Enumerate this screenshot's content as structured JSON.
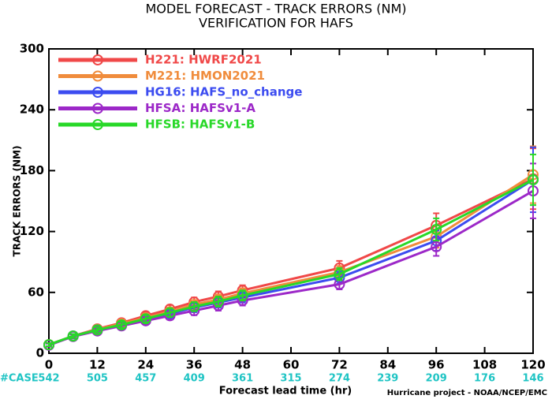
{
  "chart_data": {
    "type": "line",
    "title": "MODEL FORECAST - TRACK ERRORS (NM)",
    "subtitle": "VERIFICATION FOR HAFS",
    "x_label": "Forecast lead time (hr)",
    "y_label": "TRACK ERRORS (NM)",
    "footer": "Hurricane project - NOAA/NCEP/EMC",
    "case_label": "#CASE",
    "case_x": [
      0,
      12,
      24,
      36,
      48,
      60,
      72,
      84,
      96,
      108,
      120
    ],
    "case_counts": [
      542,
      505,
      457,
      409,
      361,
      315,
      274,
      239,
      209,
      176,
      146
    ],
    "x": [
      0,
      6,
      12,
      18,
      24,
      30,
      36,
      42,
      48,
      72,
      96,
      120
    ],
    "series": [
      {
        "name": "H221: HWRF2021",
        "color": "#f04848",
        "values": [
          8.5,
          17,
          24,
          30,
          37,
          43.5,
          50.5,
          56,
          62,
          84,
          126,
          172
        ],
        "errors": [
          1.5,
          2,
          2.5,
          3,
          3.5,
          4,
          4.5,
          5,
          5,
          7,
          12,
          30
        ]
      },
      {
        "name": "M221: HMON2021",
        "color": "#f08c3c",
        "values": [
          8,
          17,
          23.5,
          29,
          35,
          41,
          48,
          53,
          59,
          80,
          115,
          176
        ],
        "errors": [
          1.5,
          2,
          2.5,
          3,
          3.5,
          4,
          4.5,
          5,
          5,
          6,
          11,
          28
        ]
      },
      {
        "name": "HG16: HAFS_no_change",
        "color": "#3c4cf0",
        "values": [
          8,
          17,
          23,
          27.5,
          33,
          39,
          45,
          50,
          55,
          74.5,
          111,
          171
        ],
        "errors": [
          1.5,
          2,
          2.5,
          3,
          3.5,
          4,
          4.5,
          5,
          5,
          6,
          10,
          32
        ]
      },
      {
        "name": "HFSA: HAFSv1-A",
        "color": "#9c28c8",
        "values": [
          8,
          16.5,
          22,
          27,
          32,
          37,
          42,
          47,
          52,
          68,
          105,
          160
        ],
        "errors": [
          1.5,
          2,
          2.5,
          3,
          3.5,
          4,
          4.5,
          5,
          5,
          5,
          9,
          27
        ]
      },
      {
        "name": "HFSB: HAFSv1-B",
        "color": "#28d828",
        "values": [
          8.5,
          17,
          23,
          28,
          34,
          40,
          46,
          51,
          57,
          78,
          122,
          171
        ],
        "errors": [
          1.5,
          2,
          2.5,
          3,
          3.5,
          4,
          4.5,
          5,
          5,
          6,
          11,
          25
        ]
      }
    ],
    "xlim": [
      0,
      120
    ],
    "xticks": [
      0,
      12,
      24,
      36,
      48,
      60,
      72,
      84,
      96,
      108,
      120
    ],
    "ylim": [
      0,
      300
    ],
    "yticks": [
      0,
      60,
      120,
      180,
      240,
      300
    ],
    "legend": "upper-left"
  }
}
